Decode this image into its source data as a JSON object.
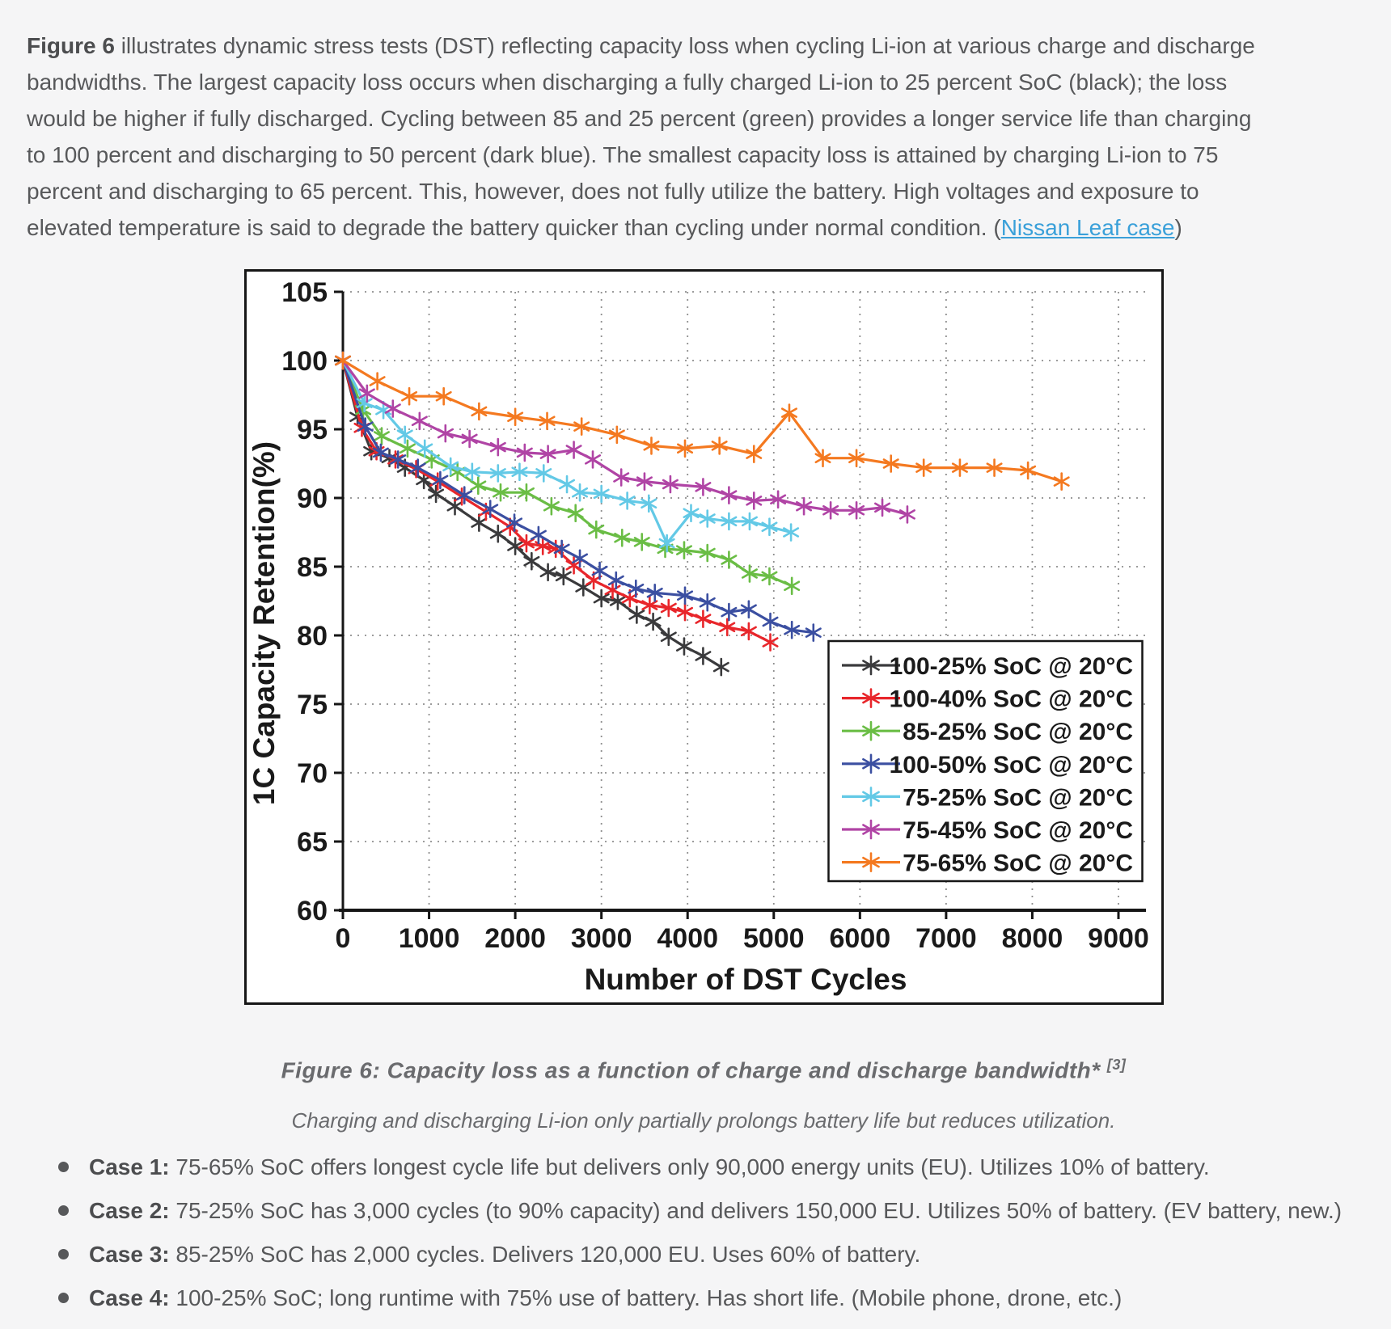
{
  "page": {
    "intro": {
      "bold_label": "Figure 6",
      "text_before_link": " illustrates dynamic stress tests (DST) reflecting capacity loss when cycling Li-ion at various charge and discharge bandwidths. The largest capacity loss occurs when discharging a fully charged Li-ion to 25 percent SoC (black); the loss would be higher if fully discharged. Cycling between 85 and 25 percent (green) provides a longer service life than charging to 100 percent and discharging to 50 percent (dark blue). The smallest capacity loss is attained by charging Li-ion to 75 percent and discharging to 65 percent. This, however, does not fully utilize the battery. High voltages and exposure to elevated temperature is said to degrade the battery quicker than cycling under normal condition. (",
      "link_text": "Nissan Leaf case",
      "text_after_link": ")"
    },
    "caption": {
      "line1": "Figure 6: Capacity loss as a function of charge and discharge bandwidth*",
      "reference": "[3]",
      "line2": "Charging and discharging Li-ion only partially prolongs battery life but reduces utilization."
    },
    "cases": [
      {
        "label": "Case 1:",
        "text": " 75-65% SoC offers longest cycle life but delivers only 90,000 energy units (EU). Utilizes 10% of battery."
      },
      {
        "label": "Case 2:",
        "text": " 75-25% SoC has 3,000 cycles (to 90% capacity) and delivers 150,000 EU. Utilizes 50% of battery. (EV battery, new.)"
      },
      {
        "label": "Case 3:",
        "text": " 85-25% SoC has 2,000 cycles. Delivers 120,000 EU. Uses 60% of battery."
      },
      {
        "label": "Case 4:",
        "text": " 100-25% SoC; long runtime with 75% use of battery. Has short life. (Mobile phone, drone, etc.)"
      }
    ],
    "colors": {
      "page_bg": "#f5f5f6",
      "body_text": "#57585a",
      "link": "#3aa0d9",
      "caption_text": "#6a6b6e"
    }
  },
  "chart_data": {
    "type": "line",
    "title": "",
    "xlabel": "Number of DST Cycles",
    "ylabel": "1C Capacity Retention(%)",
    "xlim": [
      0,
      9000
    ],
    "ylim": [
      60,
      105
    ],
    "xtick_step": 1000,
    "ytick_step": 5,
    "grid": "dotted",
    "legend_position": "lower right",
    "marker": "asterisk",
    "series": [
      {
        "label": "100-25% SoC @ 20°C",
        "color": "#3a3a3c",
        "points": [
          [
            0,
            100
          ],
          [
            170,
            95.9
          ],
          [
            330,
            93.4
          ],
          [
            540,
            92.9
          ],
          [
            720,
            92.2
          ],
          [
            940,
            91.3
          ],
          [
            1080,
            90.3
          ],
          [
            1300,
            89.4
          ],
          [
            1580,
            88.2
          ],
          [
            1800,
            87.4
          ],
          [
            2000,
            86.5
          ],
          [
            2190,
            85.4
          ],
          [
            2380,
            84.6
          ],
          [
            2560,
            84.3
          ],
          [
            2790,
            83.5
          ],
          [
            3000,
            82.7
          ],
          [
            3190,
            82.5
          ],
          [
            3410,
            81.5
          ],
          [
            3600,
            81.0
          ],
          [
            3780,
            79.9
          ],
          [
            3960,
            79.2
          ],
          [
            4180,
            78.5
          ],
          [
            4390,
            77.7
          ]
        ]
      },
      {
        "label": "100-40% SoC @ 20°C",
        "color": "#e8262b",
        "points": [
          [
            0,
            100
          ],
          [
            220,
            95.1
          ],
          [
            390,
            93.4
          ],
          [
            610,
            92.8
          ],
          [
            850,
            92.1
          ],
          [
            1100,
            91.2
          ],
          [
            1380,
            90.1
          ],
          [
            1660,
            89.0
          ],
          [
            1940,
            87.9
          ],
          [
            2130,
            86.7
          ],
          [
            2320,
            86.5
          ],
          [
            2470,
            86.3
          ],
          [
            2680,
            85.1
          ],
          [
            2910,
            84.0
          ],
          [
            3130,
            83.3
          ],
          [
            3330,
            82.7
          ],
          [
            3560,
            82.2
          ],
          [
            3780,
            82.0
          ],
          [
            3970,
            81.7
          ],
          [
            4180,
            81.2
          ],
          [
            4460,
            80.6
          ],
          [
            4710,
            80.3
          ],
          [
            4960,
            79.5
          ]
        ]
      },
      {
        "label": "85-25% SoC @ 20°C",
        "color": "#6abd45",
        "points": [
          [
            0,
            100
          ],
          [
            235,
            96.4
          ],
          [
            450,
            94.5
          ],
          [
            750,
            93.6
          ],
          [
            1030,
            92.8
          ],
          [
            1330,
            91.9
          ],
          [
            1570,
            90.9
          ],
          [
            1830,
            90.4
          ],
          [
            2130,
            90.4
          ],
          [
            2420,
            89.4
          ],
          [
            2700,
            88.9
          ],
          [
            2940,
            87.7
          ],
          [
            3240,
            87.1
          ],
          [
            3470,
            86.8
          ],
          [
            3740,
            86.3
          ],
          [
            3960,
            86.2
          ],
          [
            4230,
            86.0
          ],
          [
            4480,
            85.5
          ],
          [
            4720,
            84.5
          ],
          [
            4950,
            84.3
          ],
          [
            5210,
            83.6
          ]
        ]
      },
      {
        "label": "100-50% SoC @ 20°C",
        "color": "#3b4fa1",
        "points": [
          [
            0,
            100
          ],
          [
            260,
            95.2
          ],
          [
            440,
            93.3
          ],
          [
            640,
            92.8
          ],
          [
            870,
            92.2
          ],
          [
            1130,
            91.3
          ],
          [
            1410,
            90.2
          ],
          [
            1710,
            89.2
          ],
          [
            1990,
            88.2
          ],
          [
            2270,
            87.3
          ],
          [
            2540,
            86.3
          ],
          [
            2750,
            85.6
          ],
          [
            2980,
            84.7
          ],
          [
            3170,
            84.0
          ],
          [
            3400,
            83.4
          ],
          [
            3620,
            83.1
          ],
          [
            3970,
            82.9
          ],
          [
            4230,
            82.4
          ],
          [
            4480,
            81.7
          ],
          [
            4710,
            81.9
          ],
          [
            4960,
            81.0
          ],
          [
            5210,
            80.4
          ],
          [
            5460,
            80.2
          ]
        ]
      },
      {
        "label": "75-25% SoC @ 20°C",
        "color": "#63c9e6",
        "points": [
          [
            0,
            100
          ],
          [
            250,
            96.9
          ],
          [
            470,
            96.4
          ],
          [
            720,
            94.6
          ],
          [
            950,
            93.6
          ],
          [
            1250,
            92.3
          ],
          [
            1500,
            91.9
          ],
          [
            1800,
            91.8
          ],
          [
            2050,
            91.9
          ],
          [
            2330,
            91.8
          ],
          [
            2600,
            91.0
          ],
          [
            2750,
            90.4
          ],
          [
            3000,
            90.3
          ],
          [
            3300,
            89.8
          ],
          [
            3550,
            89.6
          ],
          [
            3760,
            86.7
          ],
          [
            4040,
            88.9
          ],
          [
            4230,
            88.5
          ],
          [
            4480,
            88.3
          ],
          [
            4720,
            88.3
          ],
          [
            4950,
            87.9
          ],
          [
            5200,
            87.5
          ]
        ]
      },
      {
        "label": "75-45% SoC @ 20°C",
        "color": "#b044a5",
        "points": [
          [
            0,
            100
          ],
          [
            280,
            97.6
          ],
          [
            580,
            96.5
          ],
          [
            890,
            95.6
          ],
          [
            1190,
            94.7
          ],
          [
            1470,
            94.3
          ],
          [
            1800,
            93.7
          ],
          [
            2110,
            93.3
          ],
          [
            2380,
            93.2
          ],
          [
            2680,
            93.5
          ],
          [
            2900,
            92.8
          ],
          [
            3230,
            91.5
          ],
          [
            3500,
            91.2
          ],
          [
            3800,
            91.0
          ],
          [
            4180,
            90.8
          ],
          [
            4480,
            90.2
          ],
          [
            4770,
            89.8
          ],
          [
            5050,
            89.9
          ],
          [
            5350,
            89.4
          ],
          [
            5660,
            89.1
          ],
          [
            5960,
            89.1
          ],
          [
            6260,
            89.3
          ],
          [
            6550,
            88.8
          ]
        ]
      },
      {
        "label": "75-65% SoC @ 20°C",
        "color": "#f47920",
        "points": [
          [
            0,
            100
          ],
          [
            400,
            98.5
          ],
          [
            770,
            97.4
          ],
          [
            1170,
            97.4
          ],
          [
            1580,
            96.3
          ],
          [
            2000,
            95.9
          ],
          [
            2370,
            95.6
          ],
          [
            2770,
            95.2
          ],
          [
            3180,
            94.6
          ],
          [
            3580,
            93.8
          ],
          [
            3970,
            93.6
          ],
          [
            4370,
            93.8
          ],
          [
            4770,
            93.2
          ],
          [
            5180,
            96.2
          ],
          [
            5570,
            92.9
          ],
          [
            5960,
            92.9
          ],
          [
            6360,
            92.5
          ],
          [
            6740,
            92.2
          ],
          [
            7160,
            92.2
          ],
          [
            7560,
            92.2
          ],
          [
            7950,
            92.0
          ],
          [
            8340,
            91.2
          ]
        ]
      }
    ]
  }
}
